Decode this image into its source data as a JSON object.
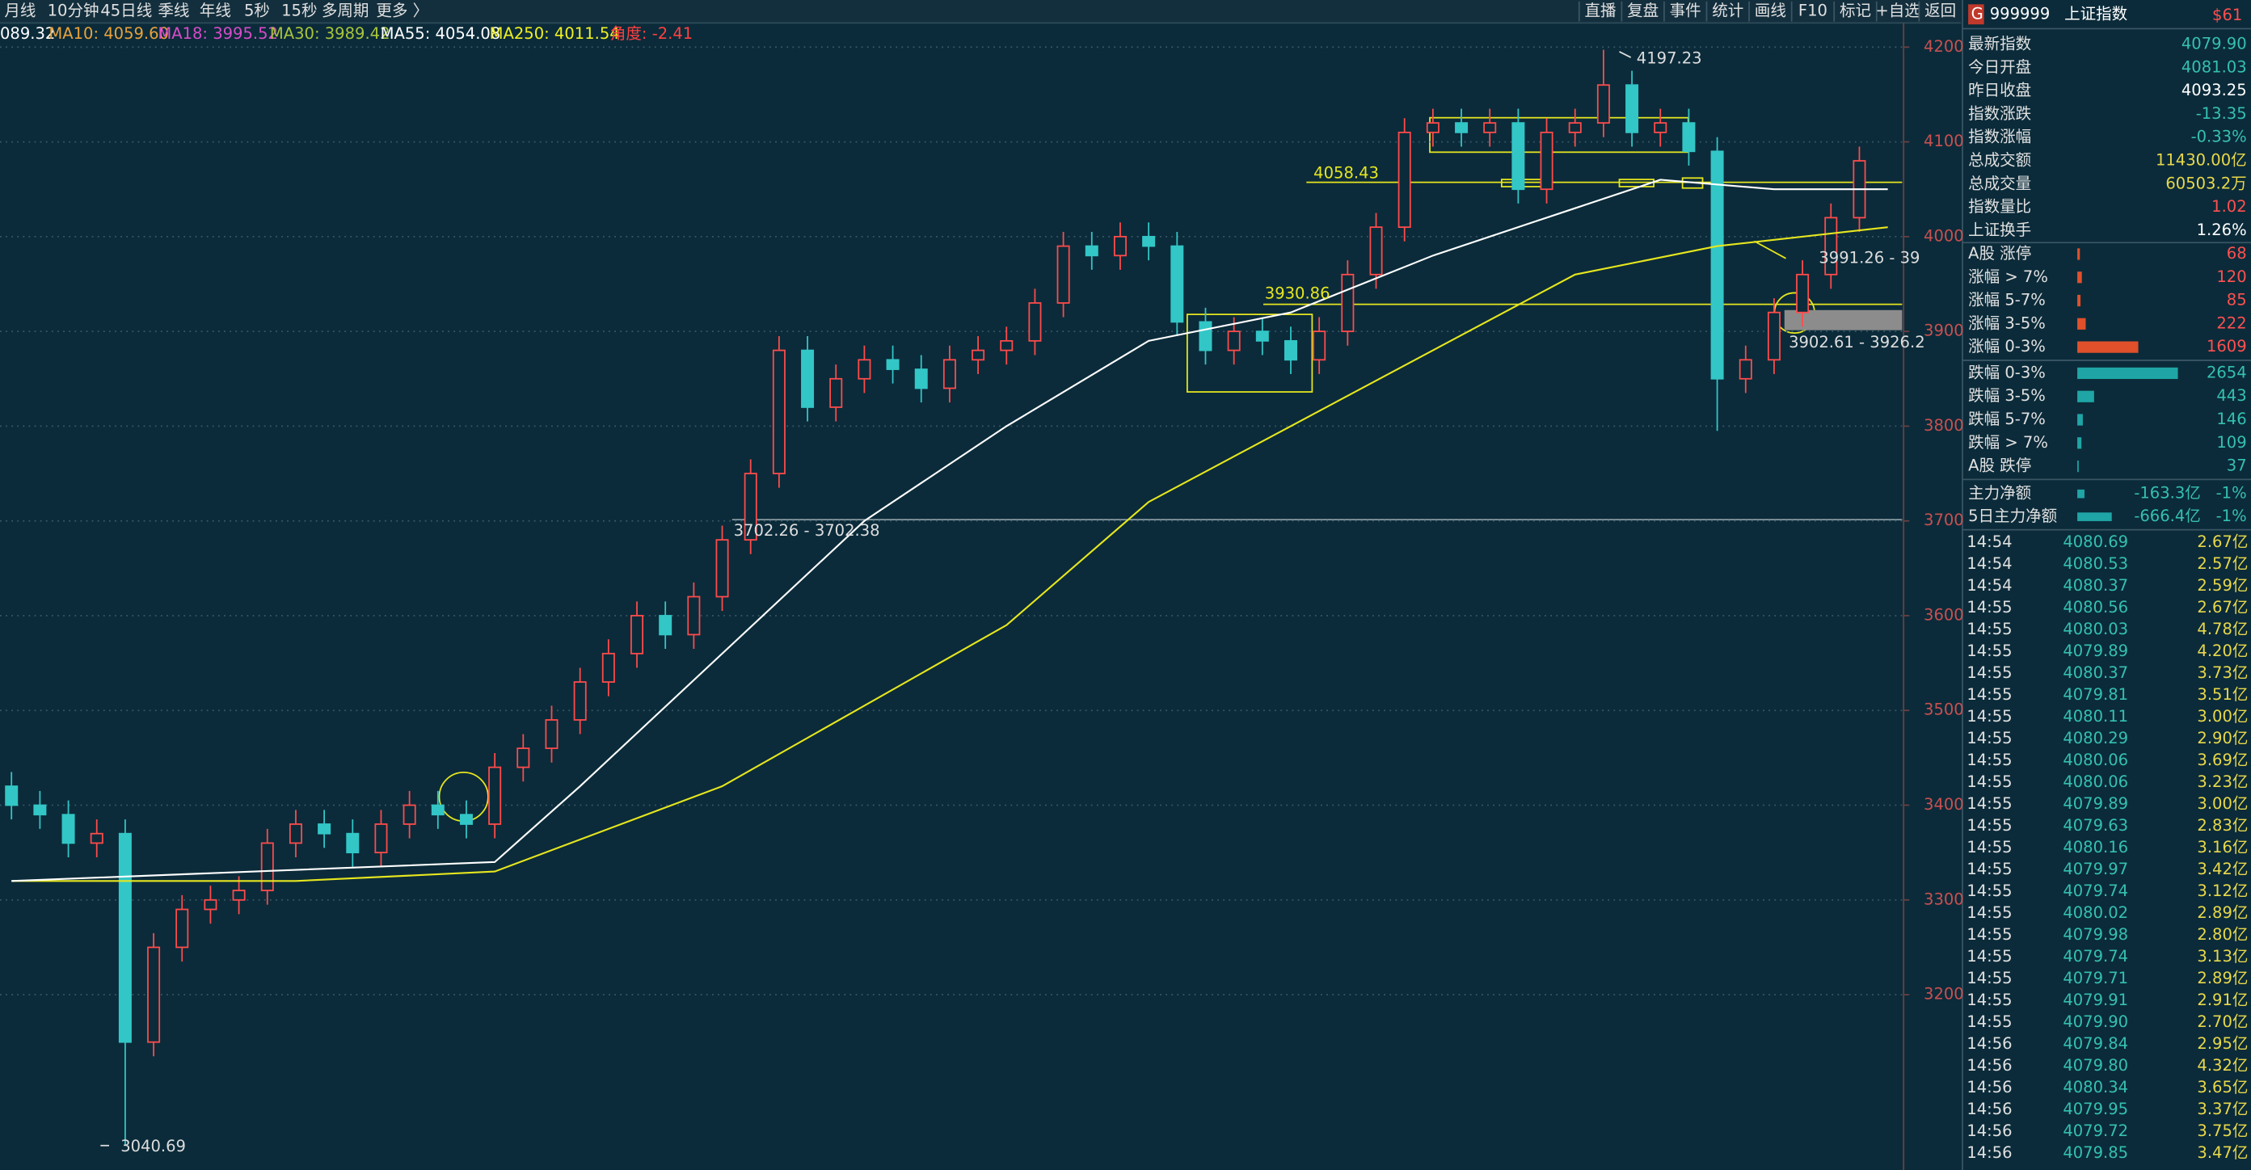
{
  "toolbar": {
    "tabs": [
      "月线",
      "10分钟",
      "45日线",
      "季线",
      "年线",
      "5秒",
      "15秒",
      "多周期",
      "更多 〉"
    ],
    "buttons": [
      "直播",
      "复盘",
      "事件",
      "统计",
      "画线",
      "F10",
      "标记",
      "+自选",
      "返回"
    ]
  },
  "legend": [
    "089.32",
    "MA10: 4059.60",
    "MA18: 3995.52",
    "MA30: 3989.42",
    "MA55: 4054.08",
    "MA250: 4011.54",
    "角度: -2.41"
  ],
  "chart_data": {
    "type": "candlestick",
    "up_color": "#ff4b4b",
    "down_color": "#33c6c6",
    "open": [
      3420,
      3400,
      3390,
      3360,
      3370,
      3150,
      3250,
      3290,
      3300,
      3310,
      3360,
      3380,
      3370,
      3350,
      3380,
      3400,
      3390,
      3380,
      3440,
      3460,
      3490,
      3530,
      3560,
      3600,
      3580,
      3620,
      3680,
      3750,
      3880,
      3820,
      3850,
      3870,
      3860,
      3840,
      3870,
      3880,
      3890,
      3930,
      3990,
      3980,
      4000,
      3990,
      3910,
      3880,
      3900,
      3890,
      3870,
      3900,
      3960,
      4010,
      4110,
      4120,
      4110,
      4120,
      4050,
      4110,
      4120,
      4160,
      4110,
      4120,
      4090,
      3850,
      3870,
      3920,
      3960,
      4020
    ],
    "high": [
      3435,
      3415,
      3405,
      3385,
      3385,
      3265,
      3305,
      3315,
      3325,
      3375,
      3395,
      3395,
      3385,
      3395,
      3415,
      3415,
      3405,
      3455,
      3475,
      3505,
      3545,
      3575,
      3615,
      3615,
      3635,
      3695,
      3765,
      3895,
      3895,
      3865,
      3885,
      3885,
      3875,
      3885,
      3895,
      3905,
      3945,
      4005,
      4005,
      4015,
      4015,
      4005,
      3925,
      3915,
      3915,
      3905,
      3915,
      3975,
      4025,
      4125,
      4135,
      4135,
      4135,
      4135,
      4125,
      4135,
      4197.23,
      4175,
      4135,
      4135,
      4105,
      3885,
      3935,
      3975,
      4035,
      4095
    ],
    "low": [
      3385,
      3375,
      3345,
      3345,
      3040.69,
      3135,
      3235,
      3275,
      3285,
      3295,
      3345,
      3355,
      3335,
      3335,
      3365,
      3375,
      3365,
      3365,
      3425,
      3445,
      3475,
      3515,
      3545,
      3565,
      3565,
      3605,
      3665,
      3735,
      3805,
      3805,
      3835,
      3845,
      3825,
      3825,
      3855,
      3865,
      3875,
      3915,
      3965,
      3965,
      3975,
      3895,
      3865,
      3865,
      3875,
      3855,
      3855,
      3885,
      3945,
      3995,
      4095,
      4095,
      4095,
      4035,
      4035,
      4095,
      4105,
      4095,
      4095,
      4075,
      3795,
      3835,
      3855,
      3905,
      3945,
      4005
    ],
    "close": [
      3400,
      3390,
      3360,
      3370,
      3150,
      3250,
      3290,
      3300,
      3310,
      3360,
      3380,
      3370,
      3350,
      3380,
      3400,
      3390,
      3380,
      3440,
      3460,
      3490,
      3530,
      3560,
      3600,
      3580,
      3620,
      3680,
      3750,
      3880,
      3820,
      3850,
      3870,
      3860,
      3840,
      3870,
      3880,
      3890,
      3930,
      3990,
      3980,
      4000,
      3990,
      3910,
      3880,
      3900,
      3890,
      3870,
      3900,
      3960,
      4010,
      4110,
      4120,
      4110,
      4120,
      4050,
      4110,
      4120,
      4160,
      4110,
      4120,
      4090,
      3850,
      3870,
      3920,
      3960,
      4020,
      4080
    ],
    "lines": [
      {
        "color": "#e6e61e",
        "x": [
          0,
          10,
          17,
          25,
          35,
          40,
          45,
          50,
          55,
          60,
          66
        ],
        "values": [
          3320,
          3320,
          3330,
          3420,
          3590,
          3720,
          3800,
          3880,
          3960,
          3990,
          4010
        ]
      },
      {
        "color": "#ffffff",
        "x": [
          0,
          17,
          20,
          25,
          30,
          35,
          40,
          45,
          50,
          55,
          58,
          62,
          66
        ],
        "values": [
          3320,
          3340,
          3420,
          3560,
          3700,
          3800,
          3890,
          3920,
          3980,
          4030,
          4060,
          4050,
          4050
        ]
      }
    ],
    "xlim": [
      0,
      66
    ],
    "ylim": [
      3015,
      4227
    ],
    "yticks": [
      3200,
      3300,
      3400,
      3500,
      3600,
      3700,
      3800,
      3900,
      4000,
      4100,
      4200
    ],
    "annotations": [
      "4197.23",
      "3040.69",
      "4058.43",
      "3930.86",
      "3702.26 - 3702.38",
      "3991.26 - 39",
      "3902.61 - 3926.2"
    ]
  },
  "panel": {
    "header": {
      "prefix": "G",
      "code": "999999",
      "name": "上证指数",
      "badge": "$61"
    },
    "quote": [
      [
        "最新指数",
        "4079.90"
      ],
      [
        "今日开盘",
        "4081.03"
      ],
      [
        "昨日收盘",
        "4093.25"
      ],
      [
        "指数涨跌",
        "-13.35"
      ],
      [
        "指数涨幅",
        "-0.33%"
      ],
      [
        "总成交额",
        "11430.00亿"
      ],
      [
        "总成交量",
        "60503.2万"
      ],
      [
        "指数量比",
        "1.02"
      ],
      [
        "上证换手",
        "1.26%"
      ]
    ],
    "breadth": {
      "up_color": "#e0502a",
      "down_color": "#1fa5a5",
      "labels": [
        "A股 涨停",
        "涨幅 > 7%",
        "涨幅 5-7%",
        "涨幅 3-5%",
        "涨幅 0-3%",
        "跌幅 0-3%",
        "跌幅 3-5%",
        "跌幅 5-7%",
        "跌幅 > 7%",
        "A股 跌停"
      ],
      "counts": [
        68,
        120,
        85,
        222,
        1609,
        2654,
        443,
        146,
        109,
        37
      ]
    },
    "flows": [
      [
        "主力净额",
        "-163.3亿",
        "-1%"
      ],
      [
        "5日主力净额",
        "-666.4亿",
        "-1%"
      ]
    ],
    "ticks": [
      [
        "14:54",
        "4080.69",
        "2.67亿"
      ],
      [
        "14:54",
        "4080.53",
        "2.57亿"
      ],
      [
        "14:54",
        "4080.37",
        "2.59亿"
      ],
      [
        "14:55",
        "4080.56",
        "2.67亿"
      ],
      [
        "14:55",
        "4080.03",
        "4.78亿"
      ],
      [
        "14:55",
        "4079.89",
        "4.20亿"
      ],
      [
        "14:55",
        "4080.37",
        "3.73亿"
      ],
      [
        "14:55",
        "4079.81",
        "3.51亿"
      ],
      [
        "14:55",
        "4080.11",
        "3.00亿"
      ],
      [
        "14:55",
        "4080.29",
        "2.90亿"
      ],
      [
        "14:55",
        "4080.06",
        "3.69亿"
      ],
      [
        "14:55",
        "4080.06",
        "3.23亿"
      ],
      [
        "14:55",
        "4079.89",
        "3.00亿"
      ],
      [
        "14:55",
        "4079.63",
        "2.83亿"
      ],
      [
        "14:55",
        "4080.16",
        "3.16亿"
      ],
      [
        "14:55",
        "4079.97",
        "3.42亿"
      ],
      [
        "14:55",
        "4079.74",
        "3.12亿"
      ],
      [
        "14:55",
        "4080.02",
        "2.89亿"
      ],
      [
        "14:55",
        "4079.98",
        "2.80亿"
      ],
      [
        "14:55",
        "4079.74",
        "3.13亿"
      ],
      [
        "14:55",
        "4079.71",
        "2.89亿"
      ],
      [
        "14:55",
        "4079.91",
        "2.91亿"
      ],
      [
        "14:55",
        "4079.90",
        "2.70亿"
      ],
      [
        "14:56",
        "4079.84",
        "2.95亿"
      ],
      [
        "14:56",
        "4079.80",
        "4.32亿"
      ],
      [
        "14:56",
        "4080.34",
        "3.65亿"
      ],
      [
        "14:56",
        "4079.95",
        "3.37亿"
      ],
      [
        "14:56",
        "4079.72",
        "3.75亿"
      ],
      [
        "14:56",
        "4079.85",
        "3.47亿"
      ]
    ]
  }
}
